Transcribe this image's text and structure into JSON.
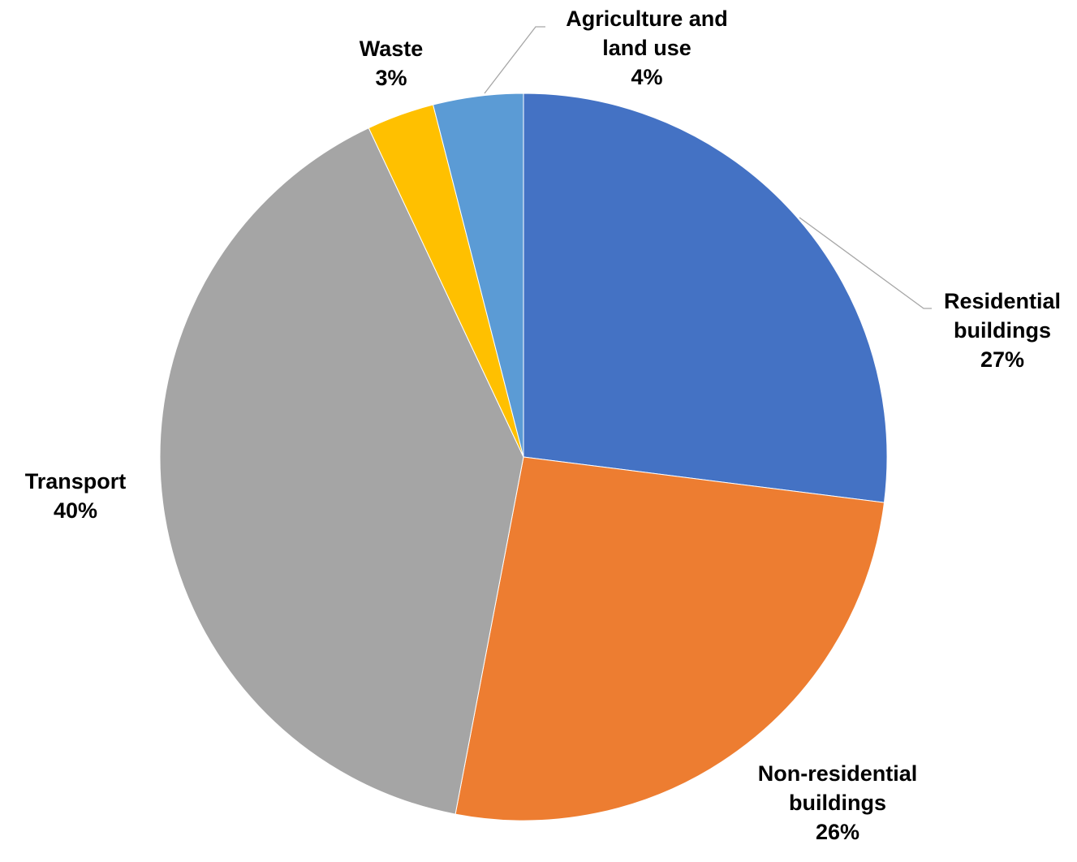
{
  "chart_data": {
    "type": "pie",
    "title": "",
    "start_angle_deg": 0,
    "direction": "clockwise",
    "slices": [
      {
        "name": "Residential buildings",
        "label_lines": [
          "Residential",
          "buildings"
        ],
        "value": 27,
        "value_label": "27%",
        "color": "#4472C4"
      },
      {
        "name": "Non-residential buildings",
        "label_lines": [
          "Non-residential",
          "buildings"
        ],
        "value": 26,
        "value_label": "26%",
        "color": "#ED7D31"
      },
      {
        "name": "Transport",
        "label_lines": [
          "Transport"
        ],
        "value": 40,
        "value_label": "40%",
        "color": "#A5A5A5"
      },
      {
        "name": "Waste",
        "label_lines": [
          "Waste"
        ],
        "value": 3,
        "value_label": "3%",
        "color": "#FFC000"
      },
      {
        "name": "Agriculture and land use",
        "label_lines": [
          "Agriculture and",
          "land use"
        ],
        "value": 4,
        "value_label": "4%",
        "color": "#5B9BD5"
      }
    ],
    "legend": "none",
    "data_labels": "outside"
  }
}
